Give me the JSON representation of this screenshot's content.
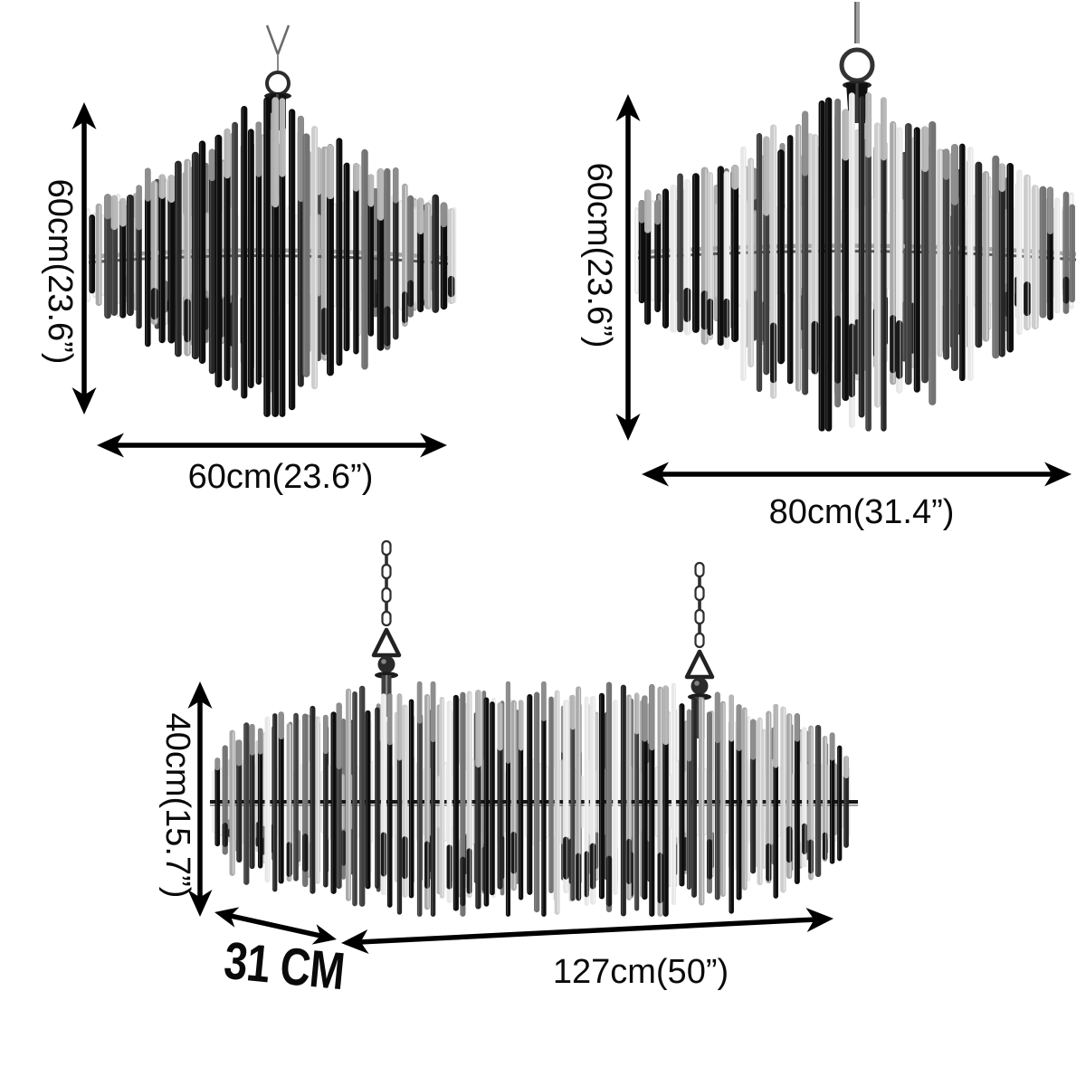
{
  "products": {
    "round_small": {
      "height": "60cm(23.6”)",
      "width": "60cm(23.6”)"
    },
    "round_large": {
      "height": "60cm(23.6”)",
      "width": "80cm(31.4”)"
    },
    "linear": {
      "height": "40cm(15.7”)",
      "depth": "31 CM",
      "width": "127cm(50”)"
    }
  },
  "icons": {
    "round_small_image": "round-tube-chandelier",
    "round_large_image": "round-tube-chandelier",
    "linear_image": "linear-tube-chandelier",
    "arrows": "double-headed-dimension-arrow"
  },
  "colors": {
    "background": "#ffffff",
    "dimension_lines": "#000000",
    "label_text": "#0a0a0a",
    "rod_black": "#0d0d0d",
    "rod_silver": "#a9a9a9",
    "rod_glass": "#d9d9d9",
    "band_silver": "#a6a6a6"
  }
}
